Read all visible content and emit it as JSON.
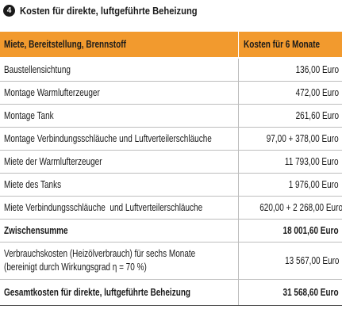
{
  "title": {
    "number": "4",
    "text": "Kosten für direkte, luftgeführte Beheizung"
  },
  "table": {
    "header": [
      "Miete, Bereitstellung, Brennstoff",
      "Kosten für 6 Monate"
    ],
    "rows": [
      [
        "Baustellensichtung",
        "136,00 Euro"
      ],
      [
        "Montage Warmlufterzeuger",
        "472,00 Euro"
      ],
      [
        "Montage Tank",
        "261,60 Euro"
      ],
      [
        "Montage Verbindungsschläuche und Luftverteilerschläuche",
        "97,00 + 378,00 Euro"
      ],
      [
        "Miete der Warmlufterzeuger",
        "11 793,00 Euro"
      ],
      [
        "Miete des Tanks",
        "1 976,00 Euro"
      ],
      [
        "Miete Verbindungsschläuche  und Luftverteilerschläuche",
        "620,00 + 2 268,00 Euro"
      ],
      [
        "Zwischensumme",
        "18 001,60 Euro"
      ],
      [
        "Verbrauchskosten (Heizölverbrauch) für sechs Monate\n(bereinigt durch Wirkungsgrad η = 70 %)",
        "13 567,00 Euro"
      ],
      [
        "Gesamtkosten für direkte, luftgeführte Beheizung",
        "31 568,60 Euro"
      ]
    ]
  }
}
